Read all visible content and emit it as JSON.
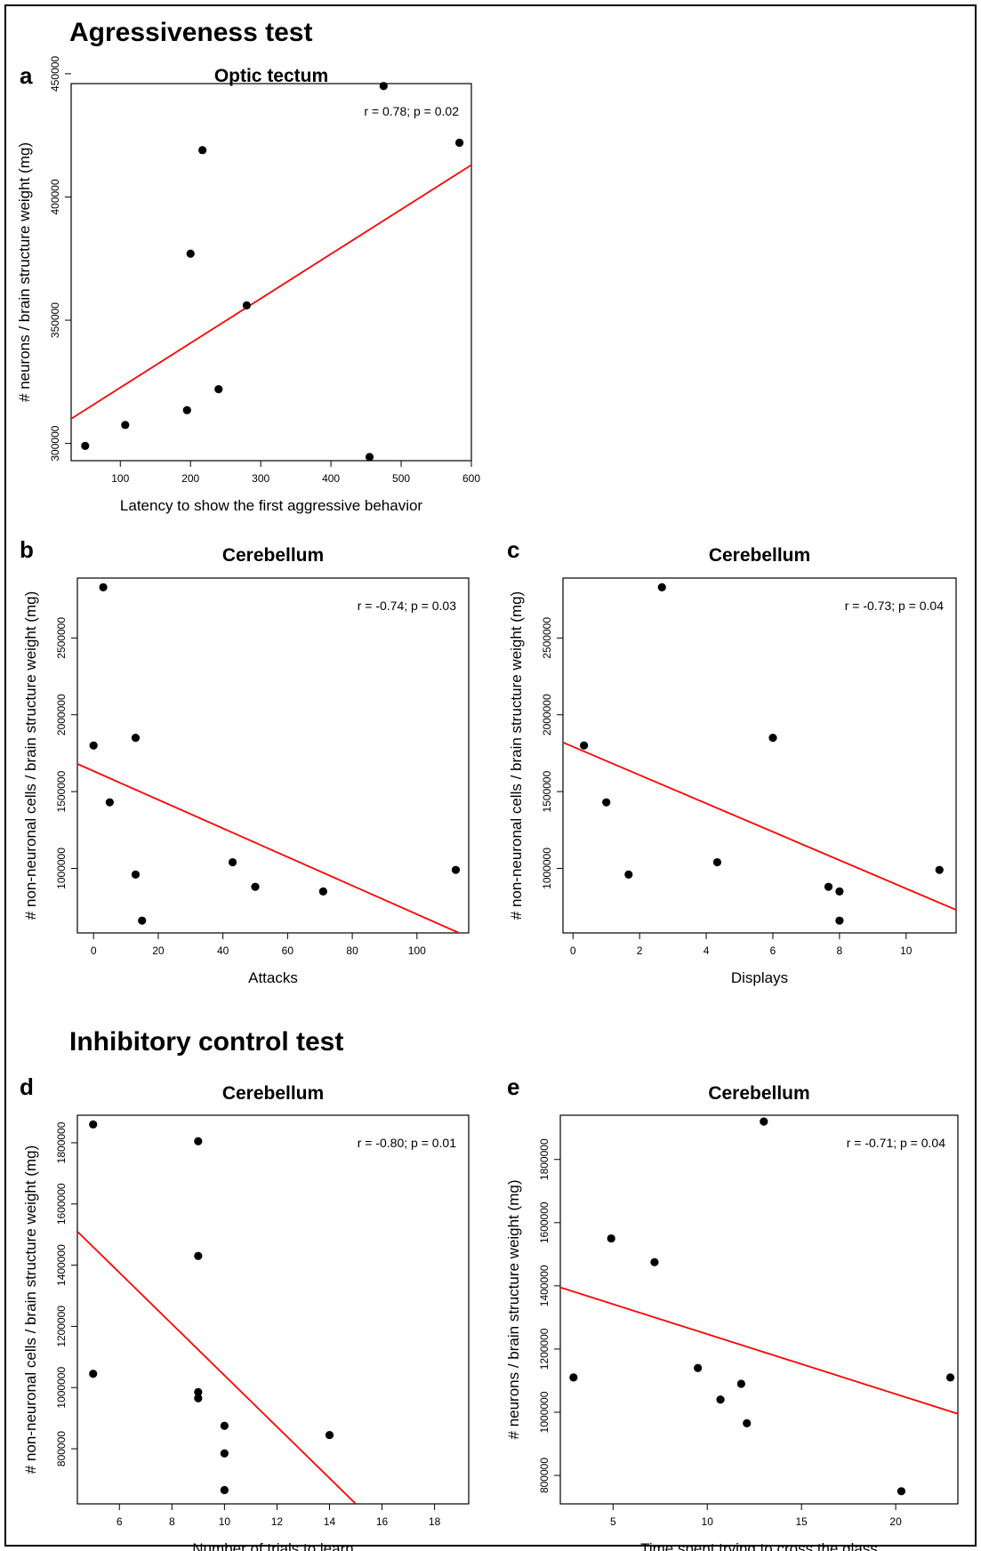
{
  "sections": [
    {
      "title": "Agressiveness test"
    },
    {
      "title": "Inhibitory control test"
    }
  ],
  "colors": {
    "points": "#000000",
    "fit_line": "#ff0000"
  },
  "chart_data": [
    {
      "panel": "a",
      "type": "scatter",
      "title": "Optic tectum",
      "xlabel": "Latency to show the first aggressive behavior",
      "ylabel": "# neurons / brain structure weight (mg)",
      "xlim": [
        30,
        600
      ],
      "ylim": [
        293000,
        446000
      ],
      "xticks": [
        100,
        200,
        300,
        400,
        500,
        600
      ],
      "yticks": [
        300000,
        350000,
        400000,
        450000
      ],
      "annotation": "r = 0.78; p = 0.02",
      "points": [
        [
          50,
          299000
        ],
        [
          107,
          307500
        ],
        [
          195,
          313500
        ],
        [
          200,
          377000
        ],
        [
          217,
          419000
        ],
        [
          240,
          322000
        ],
        [
          280,
          356000
        ],
        [
          455,
          294500
        ],
        [
          475,
          445000
        ],
        [
          583,
          422000
        ]
      ],
      "fit": [
        [
          30,
          310000
        ],
        [
          600,
          413000
        ]
      ]
    },
    {
      "panel": "b",
      "type": "scatter",
      "title": "Cerebellum",
      "xlabel": "Attacks",
      "ylabel": "# non-neuronal cells / brain structure weight (mg)",
      "xlim": [
        -5,
        116
      ],
      "ylim": [
        580000,
        2890000
      ],
      "xticks": [
        0,
        20,
        40,
        60,
        80,
        100
      ],
      "yticks": [
        1000000,
        1500000,
        2000000,
        2500000
      ],
      "annotation": "r = -0.74; p = 0.03",
      "points": [
        [
          0,
          1800000
        ],
        [
          3,
          2830000
        ],
        [
          5,
          1430000
        ],
        [
          13,
          1850000
        ],
        [
          13,
          960000
        ],
        [
          15,
          660000
        ],
        [
          43,
          1040000
        ],
        [
          50,
          880000
        ],
        [
          71,
          850000
        ],
        [
          112,
          990000
        ]
      ],
      "fit": [
        [
          -5,
          1680000
        ],
        [
          113,
          580000
        ]
      ]
    },
    {
      "panel": "c",
      "type": "scatter",
      "title": "Cerebellum",
      "xlabel": "Displays",
      "ylabel": "# non-neuronal cells / brain structure weight (mg)",
      "xlim": [
        -0.3,
        11.5
      ],
      "ylim": [
        580000,
        2890000
      ],
      "xticks": [
        0,
        2,
        4,
        6,
        8,
        10
      ],
      "yticks": [
        1000000,
        1500000,
        2000000,
        2500000
      ],
      "annotation": "r = -0.73; p = 0.04",
      "points": [
        [
          0.33,
          1800000
        ],
        [
          1,
          1430000
        ],
        [
          1.67,
          960000
        ],
        [
          2.67,
          2830000
        ],
        [
          4.33,
          1040000
        ],
        [
          6,
          1850000
        ],
        [
          7.67,
          880000
        ],
        [
          8,
          850000
        ],
        [
          8,
          660000
        ],
        [
          11,
          990000
        ]
      ],
      "fit": [
        [
          -0.3,
          1820000
        ],
        [
          11.5,
          730000
        ]
      ]
    },
    {
      "panel": "d",
      "type": "scatter",
      "title": "Cerebellum",
      "xlabel": "Number of trials to learn",
      "ylabel": "# non-neuronal cells / brain structure weight (mg)",
      "xlim": [
        4.4,
        19.3
      ],
      "ylim": [
        620000,
        1890000
      ],
      "xticks": [
        6,
        8,
        10,
        12,
        14,
        16,
        18
      ],
      "yticks": [
        800000,
        1000000,
        1200000,
        1400000,
        1600000,
        1800000
      ],
      "annotation": "r = -0.80; p = 0.01",
      "points": [
        [
          5,
          1860000
        ],
        [
          5,
          1045000
        ],
        [
          9,
          1805000
        ],
        [
          9,
          1430000
        ],
        [
          9,
          985000
        ],
        [
          9,
          965000
        ],
        [
          10,
          875000
        ],
        [
          10,
          785000
        ],
        [
          10,
          665000
        ],
        [
          14,
          845000
        ]
      ],
      "fit": [
        [
          4.4,
          1510000
        ],
        [
          15,
          620000
        ]
      ]
    },
    {
      "panel": "e",
      "type": "scatter",
      "title": "Cerebellum",
      "xlabel": "Time spent trying to cross the glass",
      "ylabel": "# neurons / brain structure weight (mg)",
      "xlim": [
        2.2,
        23.3
      ],
      "ylim": [
        710000,
        1940000
      ],
      "xticks": [
        5,
        10,
        15,
        20
      ],
      "yticks": [
        800000,
        1000000,
        1200000,
        1400000,
        1600000,
        1800000
      ],
      "annotation": "r = -0.71; p = 0.04",
      "points": [
        [
          2.9,
          1110000
        ],
        [
          4.9,
          1550000
        ],
        [
          7.2,
          1475000
        ],
        [
          9.5,
          1140000
        ],
        [
          10.7,
          1040000
        ],
        [
          11.8,
          1090000
        ],
        [
          12.1,
          965000
        ],
        [
          13,
          1920000
        ],
        [
          20.3,
          750000
        ],
        [
          22.9,
          1110000
        ]
      ],
      "fit": [
        [
          2.2,
          1395000
        ],
        [
          23.3,
          995000
        ]
      ]
    }
  ]
}
